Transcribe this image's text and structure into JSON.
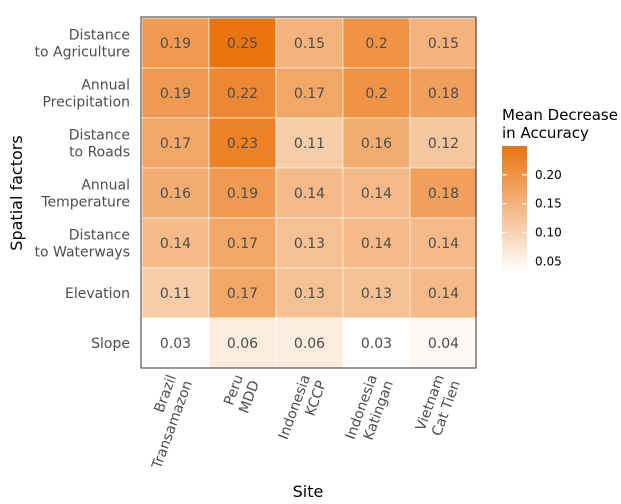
{
  "chart_data": {
    "type": "heatmap",
    "xlabel": "Site",
    "ylabel": "Spatial factors",
    "x_categories": [
      [
        "Brazil",
        "Transamazon"
      ],
      [
        "Peru",
        "MDD"
      ],
      [
        "Indonesia",
        "KCCP"
      ],
      [
        "Indonesia",
        "Katingan"
      ],
      [
        "Vietnam",
        "Cat Tien"
      ]
    ],
    "y_categories": [
      [
        "Distance",
        "to Agriculture"
      ],
      [
        "Annual",
        "Precipitation"
      ],
      [
        "Distance",
        "to Roads"
      ],
      [
        "Annual",
        "Temperature"
      ],
      [
        "Distance",
        "to Waterways"
      ],
      [
        "Elevation"
      ],
      [
        "Slope"
      ]
    ],
    "values": [
      [
        0.19,
        0.25,
        0.15,
        0.2,
        0.15
      ],
      [
        0.19,
        0.22,
        0.17,
        0.2,
        0.18
      ],
      [
        0.17,
        0.23,
        0.11,
        0.16,
        0.12
      ],
      [
        0.16,
        0.19,
        0.14,
        0.14,
        0.18
      ],
      [
        0.14,
        0.17,
        0.13,
        0.14,
        0.14
      ],
      [
        0.11,
        0.17,
        0.13,
        0.13,
        0.14
      ],
      [
        0.03,
        0.06,
        0.06,
        0.03,
        0.04
      ]
    ],
    "value_labels": [
      [
        "0.19",
        "0.25",
        "0.15",
        "0.2",
        "0.15"
      ],
      [
        "0.19",
        "0.22",
        "0.17",
        "0.2",
        "0.18"
      ],
      [
        "0.17",
        "0.23",
        "0.11",
        "0.16",
        "0.12"
      ],
      [
        "0.16",
        "0.19",
        "0.14",
        "0.14",
        "0.18"
      ],
      [
        "0.14",
        "0.17",
        "0.13",
        "0.14",
        "0.14"
      ],
      [
        "0.11",
        "0.17",
        "0.13",
        "0.13",
        "0.14"
      ],
      [
        "0.03",
        "0.06",
        "0.06",
        "0.03",
        "0.04"
      ]
    ],
    "legend": {
      "title": [
        "Mean Decrease",
        "in Accuracy"
      ],
      "ticks": [
        0.05,
        0.1,
        0.15,
        0.2
      ],
      "tick_labels": [
        "0.05",
        "0.10",
        "0.15",
        "0.20"
      ],
      "range": [
        0.03,
        0.25
      ],
      "placement": "right"
    },
    "color_low": "#ffffff",
    "color_high": "#ea7410",
    "grid": false
  }
}
